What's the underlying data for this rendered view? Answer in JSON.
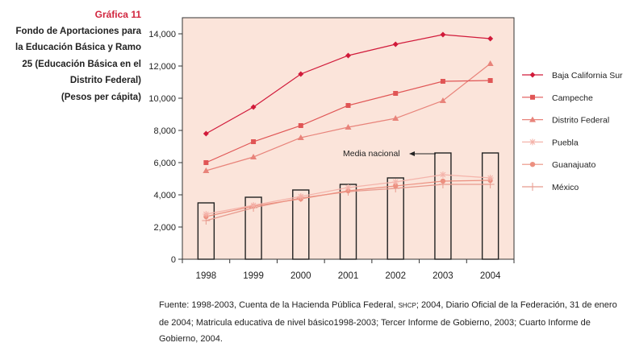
{
  "header": {
    "figure_label": "Gráfica 11",
    "title_lines": [
      "Fondo de Aportaciones para",
      "la Educación Básica y Ramo",
      "25 (Educación Básica en el",
      "Distrito Federal)",
      "(Pesos per cápita)"
    ]
  },
  "chart_data": {
    "type": "line",
    "categories": [
      "1998",
      "1999",
      "2000",
      "2001",
      "2002",
      "2003",
      "2004"
    ],
    "ylim": [
      0,
      14000
    ],
    "yticks": [
      0,
      2000,
      4000,
      6000,
      8000,
      10000,
      12000,
      14000
    ],
    "ytick_labels": [
      "0",
      "2,000",
      "4,000",
      "6,000",
      "8,000",
      "10,000",
      "12,000",
      "14,000"
    ],
    "bars": {
      "name": "Media nacional",
      "values": [
        3500,
        3850,
        4300,
        4650,
        5050,
        6600,
        6600
      ]
    },
    "series": [
      {
        "name": "Baja California Sur",
        "marker": "diamond",
        "color": "#d11a3a",
        "values": [
          7800,
          9450,
          11500,
          12650,
          13350,
          13950,
          13700
        ]
      },
      {
        "name": "Campeche",
        "marker": "square",
        "color": "#e05555",
        "values": [
          6000,
          7300,
          8300,
          9550,
          10300,
          11050,
          11100
        ]
      },
      {
        "name": "Distrito Federal",
        "marker": "triangle",
        "color": "#e8837a",
        "values": [
          5500,
          6350,
          7550,
          8200,
          8750,
          9850,
          12150
        ]
      },
      {
        "name": "Puebla",
        "marker": "asterisk",
        "color": "#f4b3aa",
        "values": [
          2800,
          3350,
          3900,
          4450,
          4800,
          5250,
          5050
        ]
      },
      {
        "name": "Guanajuato",
        "marker": "circle",
        "color": "#ec9080",
        "values": [
          2650,
          3300,
          3750,
          4250,
          4550,
          4850,
          4900
        ]
      },
      {
        "name": "México",
        "marker": "plus",
        "color": "#e89a8e",
        "values": [
          2400,
          3200,
          3800,
          4200,
          4400,
          4650,
          4650
        ]
      }
    ],
    "plot_background": "#fbe4da",
    "legend_placement": "right",
    "grid": false
  },
  "footnote": {
    "part1": "Fuente: 1998-2003, Cuenta de la Hacienda Pública Federal, ",
    "smallcaps": "SHCP",
    "part2": "; 2004, Diario Oficial de la Federación, 31 de enero de 2004; Matricula educativa de nivel básico1998-2003; Tercer Informe de Gobierno, 2003; Cuarto Informe de Gobierno, 2004."
  }
}
